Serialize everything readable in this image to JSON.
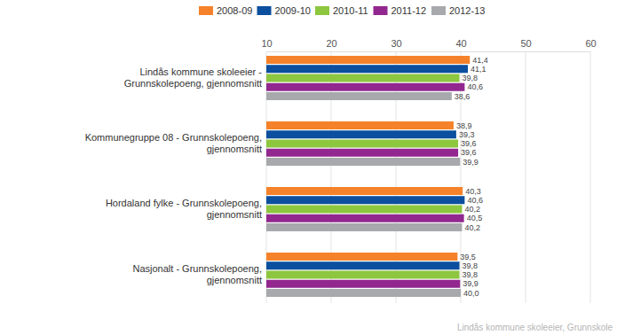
{
  "chart_data": {
    "type": "bar",
    "orientation": "horizontal",
    "categories": [
      "Lindås kommune skoleeier - Grunnskolepoeng, gjennomsnitt",
      "Kommunegruppe 08 - Grunnskolepoeng, gjennomsnitt",
      "Hordaland fylke - Grunnskolepoeng, gjennomsnitt",
      "Nasjonalt - Grunnskolepoeng, gjennomsnitt"
    ],
    "series": [
      {
        "name": "2008-09",
        "color": "#f5822a",
        "values": [
          41.4,
          38.9,
          40.3,
          39.5
        ],
        "value_labels": [
          "41,4",
          "38,9",
          "40,3",
          "39,5"
        ]
      },
      {
        "name": "2009-10",
        "color": "#0b4f9e",
        "values": [
          41.1,
          39.3,
          40.6,
          39.8
        ],
        "value_labels": [
          "41,1",
          "39,3",
          "40,6",
          "39,8"
        ]
      },
      {
        "name": "2010-11",
        "color": "#8dc63f",
        "values": [
          39.8,
          39.6,
          40.2,
          39.8
        ],
        "value_labels": [
          "39,8",
          "39,6",
          "40,2",
          "39,8"
        ]
      },
      {
        "name": "2011-12",
        "color": "#92278f",
        "values": [
          40.6,
          39.6,
          40.5,
          39.9
        ],
        "value_labels": [
          "40,6",
          "39,6",
          "40,5",
          "39,9"
        ]
      },
      {
        "name": "2012-13",
        "color": "#a7a9ac",
        "values": [
          38.6,
          39.9,
          40.2,
          40.0
        ],
        "value_labels": [
          "38,6",
          "39,9",
          "40,2",
          "40,0"
        ]
      }
    ],
    "xlim": [
      10,
      60
    ],
    "xticks": [
      10,
      20,
      30,
      40,
      50,
      60
    ],
    "grid": true,
    "legend": "top",
    "data_labels": true,
    "annotations": [
      "Lindås kommune skoleeier, Grunnskole"
    ]
  }
}
